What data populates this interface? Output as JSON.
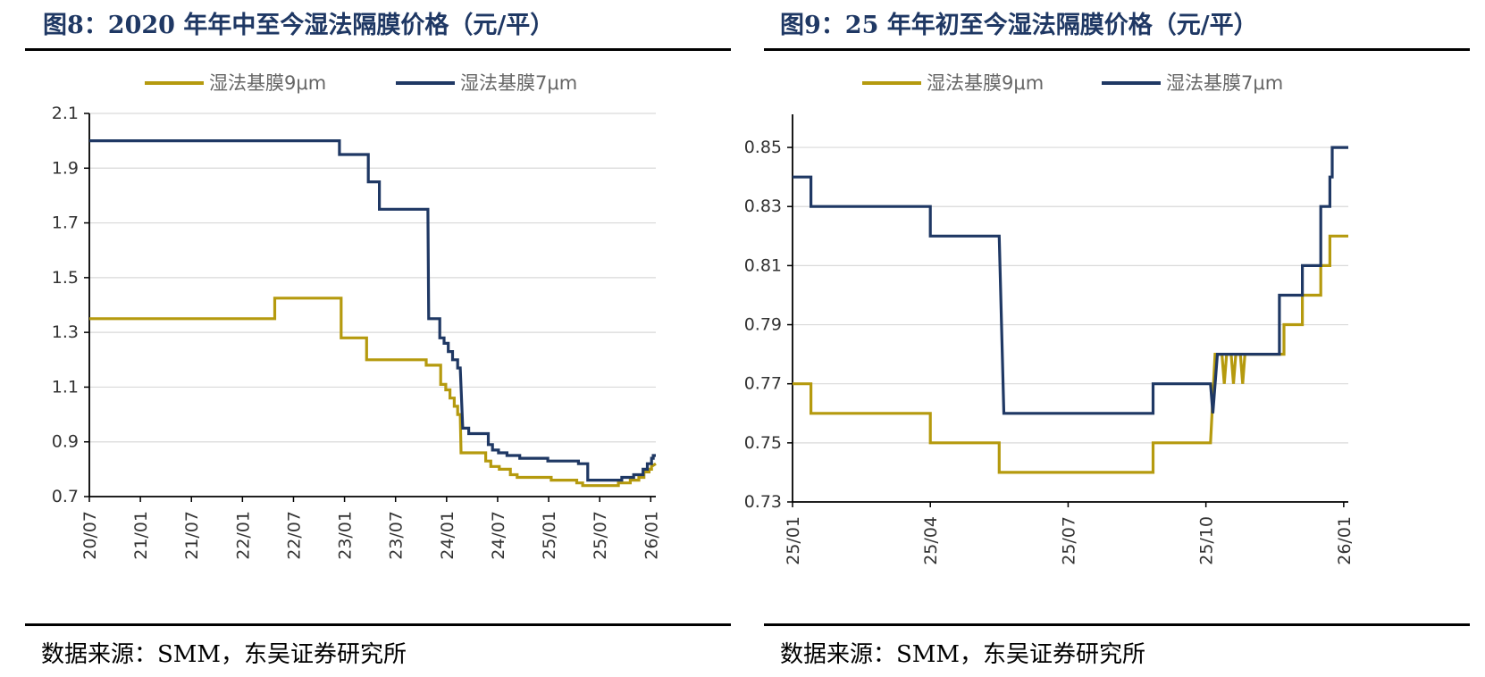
{
  "charts": [
    {
      "title": "图8：2020 年年中至今湿法隔膜价格（元/平）",
      "source": "数据来源：SMM，东吴证券研究所"
    },
    {
      "title": "图9：25 年年初至今湿法隔膜价格（元/平）",
      "source": "数据来源：SMM，东吴证券研究所"
    }
  ],
  "colors": {
    "series_9um": "#b59a0e",
    "series_7um": "#1f3864",
    "grid": "#d9d9d9",
    "axis": "#000000"
  },
  "chart_data": [
    {
      "type": "line",
      "title": "图8：2020 年年中至今湿法隔膜价格（元/平）",
      "xlabel": "",
      "ylabel": "",
      "xlim": [
        0,
        66.6
      ],
      "ylim": [
        0.7,
        2.1
      ],
      "yticks": [
        "0.7",
        "0.9",
        "1.1",
        "1.3",
        "1.5",
        "1.7",
        "1.9",
        "2.1"
      ],
      "xticks": [
        {
          "v": 0,
          "label": "20/07"
        },
        {
          "v": 6,
          "label": "21/01"
        },
        {
          "v": 12,
          "label": "21/07"
        },
        {
          "v": 18,
          "label": "22/01"
        },
        {
          "v": 24,
          "label": "22/07"
        },
        {
          "v": 30,
          "label": "23/01"
        },
        {
          "v": 36,
          "label": "23/07"
        },
        {
          "v": 42,
          "label": "24/01"
        },
        {
          "v": 48,
          "label": "24/07"
        },
        {
          "v": 54,
          "label": "25/01"
        },
        {
          "v": 60,
          "label": "25/07"
        },
        {
          "v": 66,
          "label": "26/01"
        }
      ],
      "series": [
        {
          "name": "湿法基膜9μm",
          "colorKey": "series_9um",
          "points": [
            [
              0,
              1.35
            ],
            [
              21.8,
              1.35
            ],
            [
              21.8,
              1.425
            ],
            [
              29.6,
              1.425
            ],
            [
              29.6,
              1.28
            ],
            [
              32.6,
              1.28
            ],
            [
              32.6,
              1.2
            ],
            [
              39.6,
              1.2
            ],
            [
              39.6,
              1.18
            ],
            [
              41.3,
              1.18
            ],
            [
              41.3,
              1.11
            ],
            [
              41.9,
              1.11
            ],
            [
              41.9,
              1.09
            ],
            [
              42.4,
              1.09
            ],
            [
              42.4,
              1.06
            ],
            [
              42.9,
              1.06
            ],
            [
              42.9,
              1.03
            ],
            [
              43.3,
              1.03
            ],
            [
              43.3,
              1.0
            ],
            [
              43.6,
              1.0
            ],
            [
              43.7,
              0.86
            ],
            [
              46.6,
              0.86
            ],
            [
              46.6,
              0.83
            ],
            [
              47.2,
              0.83
            ],
            [
              47.2,
              0.81
            ],
            [
              48.2,
              0.81
            ],
            [
              48.2,
              0.8
            ],
            [
              49.5,
              0.8
            ],
            [
              49.5,
              0.78
            ],
            [
              50.3,
              0.78
            ],
            [
              50.3,
              0.77
            ],
            [
              54.3,
              0.77
            ],
            [
              54.3,
              0.76
            ],
            [
              57.3,
              0.76
            ],
            [
              57.3,
              0.75
            ],
            [
              58.0,
              0.75
            ],
            [
              58.0,
              0.74
            ],
            [
              62.2,
              0.74
            ],
            [
              62.2,
              0.75
            ],
            [
              63.6,
              0.75
            ],
            [
              63.6,
              0.76
            ],
            [
              64.6,
              0.76
            ],
            [
              64.6,
              0.77
            ],
            [
              65.2,
              0.77
            ],
            [
              65.2,
              0.79
            ],
            [
              65.8,
              0.79
            ],
            [
              65.8,
              0.8
            ],
            [
              66.1,
              0.8
            ],
            [
              66.1,
              0.81
            ],
            [
              66.6,
              0.82
            ]
          ]
        },
        {
          "name": "湿法基膜7μm",
          "colorKey": "series_7um",
          "points": [
            [
              0,
              2.0
            ],
            [
              29.4,
              2.0
            ],
            [
              29.4,
              1.95
            ],
            [
              32.8,
              1.95
            ],
            [
              32.8,
              1.85
            ],
            [
              34.1,
              1.85
            ],
            [
              34.1,
              1.75
            ],
            [
              39.8,
              1.75
            ],
            [
              39.9,
              1.35
            ],
            [
              41.2,
              1.35
            ],
            [
              41.2,
              1.28
            ],
            [
              41.7,
              1.28
            ],
            [
              41.7,
              1.26
            ],
            [
              42.2,
              1.26
            ],
            [
              42.2,
              1.23
            ],
            [
              42.7,
              1.23
            ],
            [
              42.7,
              1.2
            ],
            [
              43.3,
              1.2
            ],
            [
              43.3,
              1.17
            ],
            [
              43.6,
              1.17
            ],
            [
              43.9,
              0.95
            ],
            [
              44.6,
              0.95
            ],
            [
              44.6,
              0.93
            ],
            [
              46.9,
              0.93
            ],
            [
              46.9,
              0.89
            ],
            [
              47.4,
              0.89
            ],
            [
              47.4,
              0.87
            ],
            [
              48.1,
              0.87
            ],
            [
              48.1,
              0.86
            ],
            [
              49.1,
              0.86
            ],
            [
              49.1,
              0.85
            ],
            [
              50.6,
              0.85
            ],
            [
              50.6,
              0.84
            ],
            [
              53.9,
              0.84
            ],
            [
              53.9,
              0.83
            ],
            [
              57.5,
              0.83
            ],
            [
              57.5,
              0.82
            ],
            [
              58.6,
              0.82
            ],
            [
              58.6,
              0.76
            ],
            [
              62.6,
              0.76
            ],
            [
              62.6,
              0.77
            ],
            [
              64.0,
              0.77
            ],
            [
              64.0,
              0.78
            ],
            [
              65.1,
              0.78
            ],
            [
              65.1,
              0.8
            ],
            [
              65.6,
              0.8
            ],
            [
              65.6,
              0.82
            ],
            [
              66.1,
              0.82
            ],
            [
              66.1,
              0.84
            ],
            [
              66.3,
              0.84
            ],
            [
              66.3,
              0.85
            ],
            [
              66.6,
              0.85
            ]
          ]
        }
      ]
    },
    {
      "type": "line",
      "title": "图9：25 年年初至今湿法隔膜价格（元/平）",
      "xlabel": "",
      "ylabel": "",
      "xlim": [
        0,
        12.1
      ],
      "ylim": [
        0.73,
        0.86
      ],
      "yticks": [
        "0.73",
        "0.75",
        "0.77",
        "0.79",
        "0.81",
        "0.83",
        "0.85"
      ],
      "xticks": [
        {
          "v": 0,
          "label": "25/01"
        },
        {
          "v": 3,
          "label": "25/04"
        },
        {
          "v": 6,
          "label": "25/07"
        },
        {
          "v": 9,
          "label": "25/10"
        },
        {
          "v": 12,
          "label": "26/01"
        }
      ],
      "series": [
        {
          "name": "湿法基膜9μm",
          "colorKey": "series_9um",
          "points": [
            [
              0,
              0.77
            ],
            [
              0.4,
              0.77
            ],
            [
              0.4,
              0.76
            ],
            [
              3.0,
              0.76
            ],
            [
              3.0,
              0.75
            ],
            [
              4.5,
              0.75
            ],
            [
              4.5,
              0.74
            ],
            [
              7.85,
              0.74
            ],
            [
              7.85,
              0.75
            ],
            [
              9.1,
              0.75
            ],
            [
              9.2,
              0.78
            ],
            [
              9.35,
              0.78
            ],
            [
              9.4,
              0.77
            ],
            [
              9.45,
              0.78
            ],
            [
              9.55,
              0.78
            ],
            [
              9.6,
              0.77
            ],
            [
              9.65,
              0.78
            ],
            [
              9.75,
              0.78
            ],
            [
              9.8,
              0.77
            ],
            [
              9.85,
              0.78
            ],
            [
              10.7,
              0.78
            ],
            [
              10.7,
              0.79
            ],
            [
              11.1,
              0.79
            ],
            [
              11.1,
              0.8
            ],
            [
              11.5,
              0.8
            ],
            [
              11.5,
              0.81
            ],
            [
              11.7,
              0.81
            ],
            [
              11.7,
              0.82
            ],
            [
              12.1,
              0.82
            ]
          ]
        },
        {
          "name": "湿法基膜7μm",
          "colorKey": "series_7um",
          "points": [
            [
              0,
              0.84
            ],
            [
              0.4,
              0.84
            ],
            [
              0.4,
              0.83
            ],
            [
              3.0,
              0.83
            ],
            [
              3.0,
              0.82
            ],
            [
              4.5,
              0.82
            ],
            [
              4.6,
              0.76
            ],
            [
              7.85,
              0.76
            ],
            [
              7.85,
              0.77
            ],
            [
              9.1,
              0.77
            ],
            [
              9.15,
              0.76
            ],
            [
              9.25,
              0.78
            ],
            [
              10.6,
              0.78
            ],
            [
              10.6,
              0.8
            ],
            [
              11.1,
              0.8
            ],
            [
              11.1,
              0.81
            ],
            [
              11.5,
              0.81
            ],
            [
              11.5,
              0.83
            ],
            [
              11.7,
              0.83
            ],
            [
              11.7,
              0.84
            ],
            [
              11.75,
              0.84
            ],
            [
              11.75,
              0.85
            ],
            [
              12.1,
              0.85
            ]
          ]
        }
      ]
    }
  ]
}
